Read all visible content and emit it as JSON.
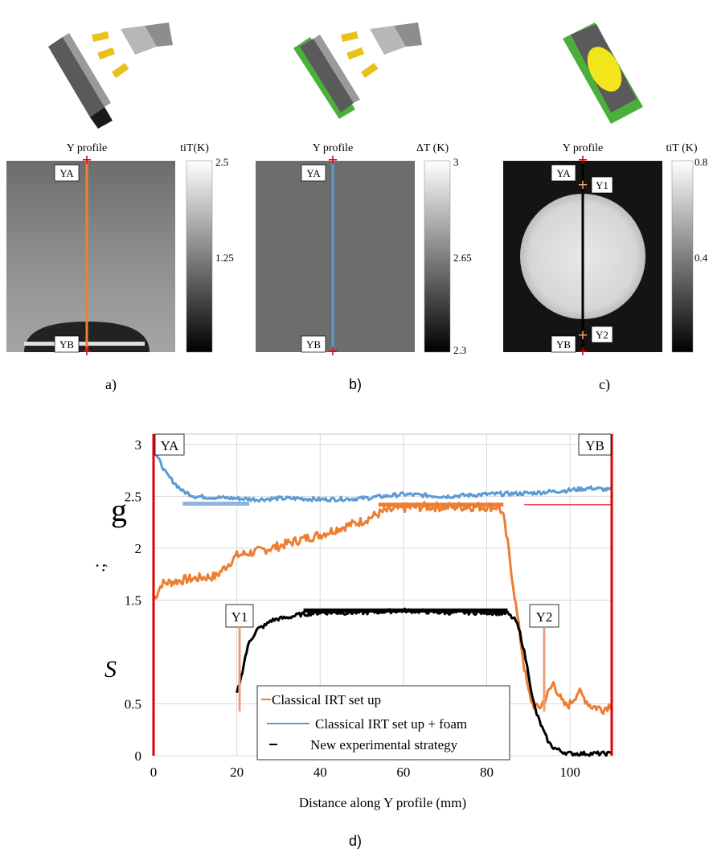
{
  "panels": [
    {
      "panel_label": "a)",
      "profile_label": "Y profile",
      "colorbar_title": "tiT(K)",
      "colorbar_ticks": [
        "2.5",
        "1.25"
      ],
      "points": [
        "YA",
        "YB"
      ],
      "line_color": "#e8823a"
    },
    {
      "panel_label": "b)",
      "profile_label": "Y profile",
      "colorbar_title": "ΔT (K)",
      "colorbar_ticks": [
        "3",
        "2.65",
        "2.3"
      ],
      "points": [
        "YA",
        "YB"
      ],
      "line_color": "#5b9bd5"
    },
    {
      "panel_label": "c)",
      "profile_label": "Y profile",
      "colorbar_title": "tiT  (K)",
      "colorbar_ticks": [
        "0.8",
        "0.4"
      ],
      "points": [
        "YA",
        "YB",
        "Y1",
        "Y2"
      ],
      "line_color": "#000000"
    }
  ],
  "chart_panel_label": "d)",
  "icons": [
    "irt-setup-heater-icon",
    "irt-setup-foam-heater-icon",
    "new-strategy-sample-icon"
  ],
  "chart_data": {
    "type": "line",
    "title": "",
    "xlabel": "Distance along Y profile (mm)",
    "ylabel_garbled": [
      "S",
      ".;",
      "g"
    ],
    "xlim": [
      0,
      110
    ],
    "ylim": [
      0,
      3.1
    ],
    "x_ticks": [
      "0",
      "20",
      "40",
      "60",
      "80",
      "100"
    ],
    "y_ticks": [
      "0",
      "0.5",
      "1.5",
      "2",
      "2.5",
      "3"
    ],
    "grid": true,
    "markers": [
      "YA",
      "YB",
      "Y1",
      "Y2"
    ],
    "series": [
      {
        "name": "Classical IRT set up",
        "color": "#ed7d31",
        "x": [
          0,
          2,
          5,
          8,
          12,
          15,
          20,
          25,
          30,
          35,
          40,
          45,
          50,
          55,
          60,
          65,
          70,
          75,
          80,
          83,
          84,
          85,
          86,
          87,
          88,
          89,
          90,
          91,
          92,
          93,
          94,
          95,
          96,
          97,
          98,
          99,
          100,
          102,
          105,
          108,
          110
        ],
        "y": [
          1.5,
          1.66,
          1.68,
          1.7,
          1.72,
          1.73,
          1.93,
          1.97,
          2.02,
          2.08,
          2.13,
          2.2,
          2.26,
          2.35,
          2.39,
          2.4,
          2.4,
          2.4,
          2.4,
          2.4,
          2.3,
          2.05,
          1.75,
          1.45,
          1.15,
          0.85,
          0.62,
          0.5,
          0.46,
          0.48,
          0.55,
          0.62,
          0.7,
          0.62,
          0.52,
          0.48,
          0.5,
          0.62,
          0.48,
          0.45,
          0.5
        ]
      },
      {
        "name": "Classical IRT set up + foam",
        "color": "#5b9bd5",
        "x": [
          0,
          1,
          2,
          3,
          5,
          7,
          10,
          15,
          20,
          25,
          30,
          35,
          40,
          50,
          60,
          70,
          80,
          90,
          100,
          105,
          110
        ],
        "y": [
          2.95,
          2.87,
          2.8,
          2.72,
          2.63,
          2.55,
          2.5,
          2.49,
          2.48,
          2.47,
          2.48,
          2.48,
          2.47,
          2.48,
          2.52,
          2.5,
          2.52,
          2.53,
          2.56,
          2.58,
          2.56
        ]
      },
      {
        "name": "New experimental strategy",
        "color": "#000000",
        "x": [
          20,
          21,
          22,
          23,
          25,
          27,
          28,
          30,
          32,
          35,
          40,
          50,
          60,
          70,
          80,
          85,
          87,
          88,
          89,
          90,
          91,
          92,
          93,
          94,
          95,
          96,
          98,
          100,
          105,
          110
        ],
        "y": [
          0.6,
          0.75,
          0.95,
          1.1,
          1.22,
          1.26,
          1.3,
          1.32,
          1.33,
          1.36,
          1.38,
          1.38,
          1.4,
          1.38,
          1.38,
          1.37,
          1.3,
          1.18,
          1.0,
          0.8,
          0.55,
          0.4,
          0.3,
          0.2,
          0.12,
          0.08,
          0.04,
          0.02,
          0.02,
          0.02
        ]
      }
    ],
    "annotations": [
      {
        "label": "fit-classical",
        "x": [
          7,
          23
        ],
        "y": [
          2.43,
          2.43
        ],
        "color": "#8fb5dc"
      },
      {
        "label": "fit-orange-top",
        "x": [
          54,
          84
        ],
        "y": [
          2.42,
          2.42
        ],
        "color": "#ed7d31"
      },
      {
        "label": "fit-black-top",
        "x": [
          36,
          85
        ],
        "y": [
          1.4,
          1.4
        ],
        "color": "#000000"
      },
      {
        "label": "ref-red",
        "x": [
          89,
          110
        ],
        "y": [
          2.42,
          2.42
        ],
        "color": "#ff4444"
      }
    ],
    "legend": {
      "position": "bottom-center",
      "entries": [
        "Classical IRT set up",
        "Classical IRT set up + foam",
        "New experimental strategy"
      ]
    }
  }
}
